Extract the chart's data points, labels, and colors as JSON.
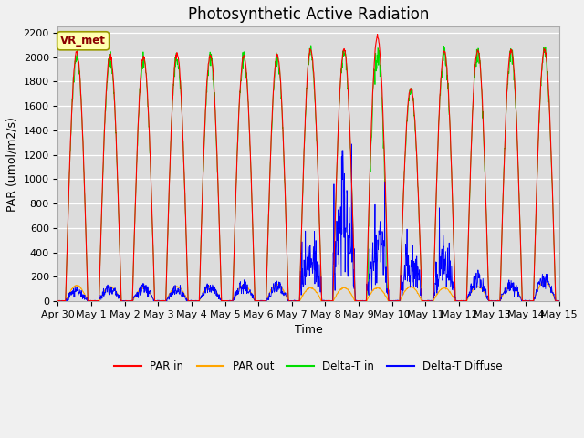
{
  "title": "Photosynthetic Active Radiation",
  "xlabel": "Time",
  "ylabel": "PAR (umol/m2/s)",
  "label_box_text": "VR_met",
  "legend": [
    "PAR in",
    "PAR out",
    "Delta-T in",
    "Delta-T Diffuse"
  ],
  "colors": {
    "par_in": "#ff0000",
    "par_out": "#ffa500",
    "delta_t_in": "#00dd00",
    "delta_t_diffuse": "#0000ff"
  },
  "ylim": [
    0,
    2250
  ],
  "plot_bg_color": "#dcdcdc",
  "grid_color": "#ffffff",
  "title_fontsize": 12,
  "axis_fontsize": 9
}
